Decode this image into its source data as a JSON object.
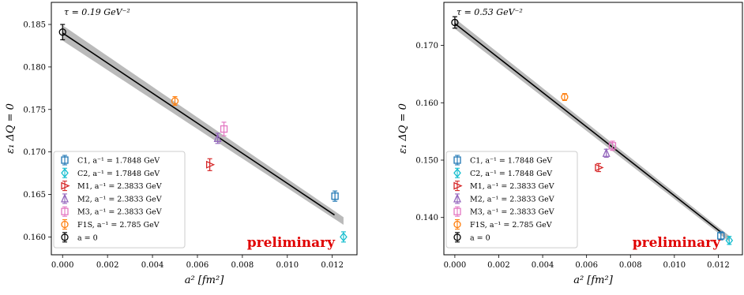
{
  "chart_data": [
    {
      "type": "scatter",
      "annotation": "τ = 0.19 GeV⁻²",
      "watermark": "preliminary",
      "xlabel": "a² [fm²]",
      "ylabel": "ε₁ ΔQ = 0",
      "xlim": [
        -0.0005,
        0.0131
      ],
      "ylim": [
        0.1579,
        0.1876
      ],
      "xticks": [
        "0.000",
        "0.002",
        "0.004",
        "0.006",
        "0.008",
        "0.010",
        "0.012"
      ],
      "yticks": [
        "0.160",
        "0.165",
        "0.170",
        "0.175",
        "0.180",
        "0.185"
      ],
      "fit": {
        "y0": 0.184,
        "slope": -1.77,
        "band_halfwidth_at_0": 0.0009,
        "band_halfwidth_at_end": 0.00045
      },
      "series": [
        {
          "name": "C1, a⁻¹ = 1.7848 GeV",
          "color": "#1f77b4",
          "marker": "square",
          "x": 0.01212,
          "y": 0.1648,
          "err": 0.0006
        },
        {
          "name": "C2, a⁻¹ = 1.7848 GeV",
          "color": "#17becf",
          "marker": "diamond",
          "x": 0.0125,
          "y": 0.16,
          "err": 0.0006
        },
        {
          "name": "M1, a⁻¹ = 2.3833 GeV",
          "color": "#d62728",
          "marker": "tri-right",
          "x": 0.00655,
          "y": 0.1685,
          "err": 0.0007
        },
        {
          "name": "M2, a⁻¹ = 2.3833 GeV",
          "color": "#9467bd",
          "marker": "tri-up",
          "x": 0.0069,
          "y": 0.1716,
          "err": 0.0006
        },
        {
          "name": "M3, a⁻¹ = 2.3833 GeV",
          "color": "#e377c2",
          "marker": "square",
          "x": 0.00718,
          "y": 0.1727,
          "err": 0.0008
        },
        {
          "name": "F1S, a⁻¹ = 2.785 GeV",
          "color": "#ff7f0e",
          "marker": "circle",
          "x": 0.005,
          "y": 0.176,
          "err": 0.0005
        },
        {
          "name": "a = 0",
          "color": "#000000",
          "marker": "circle",
          "x": 0.0,
          "y": 0.1841,
          "err": 0.0009
        }
      ]
    },
    {
      "type": "scatter",
      "annotation": "τ = 0.53 GeV⁻²",
      "watermark": "preliminary",
      "xlabel": "a² [fm²]",
      "ylabel": "ε₁ ΔQ = 0",
      "xlim": [
        -0.0005,
        0.0131
      ],
      "ylim": [
        0.1335,
        0.1775
      ],
      "xticks": [
        "0.000",
        "0.002",
        "0.004",
        "0.006",
        "0.008",
        "0.010",
        "0.012"
      ],
      "yticks": [
        "0.140",
        "0.150",
        "0.160",
        "0.170"
      ],
      "fit": {
        "y0": 0.1738,
        "slope": -3.0,
        "band_halfwidth_at_0": 0.0009,
        "band_halfwidth_at_end": 0.0005
      },
      "series": [
        {
          "name": "C1, a⁻¹ = 1.7848 GeV",
          "color": "#1f77b4",
          "marker": "square",
          "x": 0.01212,
          "y": 0.1368,
          "err": 0.0007
        },
        {
          "name": "C2, a⁻¹ = 1.7848 GeV",
          "color": "#17becf",
          "marker": "diamond",
          "x": 0.0125,
          "y": 0.136,
          "err": 0.0007
        },
        {
          "name": "M1, a⁻¹ = 2.3833 GeV",
          "color": "#d62728",
          "marker": "tri-right",
          "x": 0.00655,
          "y": 0.1487,
          "err": 0.0007
        },
        {
          "name": "M2, a⁻¹ = 2.3833 GeV",
          "color": "#9467bd",
          "marker": "tri-up",
          "x": 0.0069,
          "y": 0.1512,
          "err": 0.0007
        },
        {
          "name": "M3, a⁻¹ = 2.3833 GeV",
          "color": "#e377c2",
          "marker": "square",
          "x": 0.00718,
          "y": 0.1525,
          "err": 0.0008
        },
        {
          "name": "F1S, a⁻¹ = 2.785 GeV",
          "color": "#ff7f0e",
          "marker": "circle",
          "x": 0.005,
          "y": 0.161,
          "err": 0.0006
        },
        {
          "name": "a = 0",
          "color": "#000000",
          "marker": "circle",
          "x": 0.0,
          "y": 0.174,
          "err": 0.001
        }
      ]
    }
  ]
}
